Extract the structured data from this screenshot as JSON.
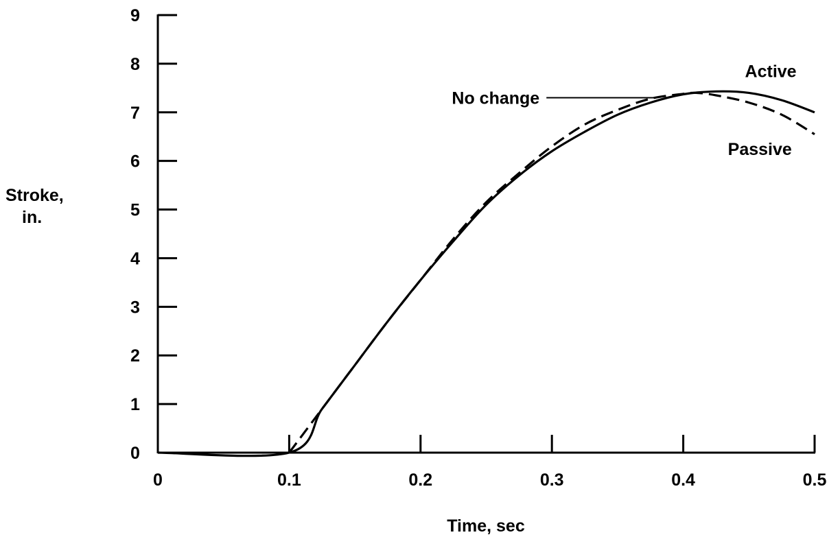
{
  "chart_data": {
    "type": "line",
    "title": "",
    "xlabel": "Time, sec",
    "ylabel_lines": [
      "Stroke,",
      "in."
    ],
    "xlim": [
      0,
      0.5
    ],
    "ylim": [
      0,
      9
    ],
    "x_ticks": [
      0,
      0.1,
      0.2,
      0.3,
      0.4,
      0.5
    ],
    "x_tick_labels": [
      "0",
      "0.1",
      "0.2",
      "0.3",
      "0.4",
      "0.5"
    ],
    "y_ticks": [
      0,
      1,
      2,
      3,
      4,
      5,
      6,
      7,
      8,
      9
    ],
    "y_tick_labels": [
      "0",
      "1",
      "2",
      "3",
      "4",
      "5",
      "6",
      "7",
      "8",
      "9"
    ],
    "grid": false,
    "colors": {
      "line": "#000000",
      "background": "#ffffff"
    },
    "series": [
      {
        "name": "Active",
        "style": "solid",
        "points": [
          [
            0.0,
            0
          ],
          [
            0.1,
            0
          ],
          [
            0.125,
            0.9
          ],
          [
            0.15,
            1.8
          ],
          [
            0.175,
            2.7
          ],
          [
            0.2,
            3.55
          ],
          [
            0.225,
            4.35
          ],
          [
            0.25,
            5.1
          ],
          [
            0.275,
            5.7
          ],
          [
            0.3,
            6.2
          ],
          [
            0.325,
            6.6
          ],
          [
            0.35,
            6.95
          ],
          [
            0.375,
            7.2
          ],
          [
            0.4,
            7.37
          ],
          [
            0.425,
            7.43
          ],
          [
            0.45,
            7.4
          ],
          [
            0.475,
            7.25
          ],
          [
            0.5,
            7.0
          ]
        ]
      },
      {
        "name": "Passive",
        "style": "dashed",
        "points": [
          [
            0.1,
            0
          ],
          [
            0.125,
            0.9
          ],
          [
            0.15,
            1.8
          ],
          [
            0.175,
            2.7
          ],
          [
            0.2,
            3.55
          ],
          [
            0.225,
            4.4
          ],
          [
            0.25,
            5.15
          ],
          [
            0.275,
            5.75
          ],
          [
            0.3,
            6.3
          ],
          [
            0.325,
            6.75
          ],
          [
            0.35,
            7.05
          ],
          [
            0.375,
            7.28
          ],
          [
            0.4,
            7.38
          ],
          [
            0.41,
            7.4
          ],
          [
            0.425,
            7.35
          ],
          [
            0.45,
            7.2
          ],
          [
            0.475,
            6.95
          ],
          [
            0.5,
            6.55
          ]
        ]
      }
    ],
    "annotations": [
      {
        "id": "no-change",
        "text": "No change",
        "x": 0.3,
        "y": 7.3,
        "leader_to": [
          0.375,
          7.3
        ]
      },
      {
        "id": "active",
        "text": "Active",
        "x": 0.447,
        "y": 7.85
      },
      {
        "id": "passive",
        "text": "Passive",
        "x": 0.434,
        "y": 6.25
      }
    ]
  }
}
